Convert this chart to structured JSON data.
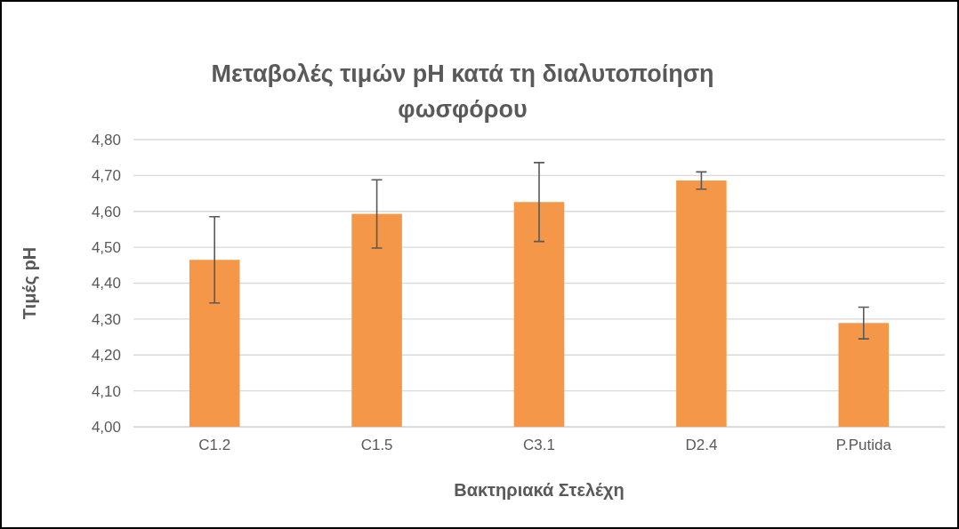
{
  "chart_data": {
    "type": "bar",
    "title": "Μεταβολές τιμών pH κατά τη διαλυτοποίηση φωσφόρου",
    "xlabel": "Βακτηριακά Στελέχη",
    "ylabel": "Τιμές pH",
    "categories": [
      "C1.2",
      "C1.5",
      "C3.1",
      "D2.4",
      "P.Putida"
    ],
    "values": [
      4.465,
      4.593,
      4.626,
      4.686,
      4.289
    ],
    "errors": [
      0.12,
      0.095,
      0.11,
      0.024,
      0.044
    ],
    "color": "#f59748",
    "ylim": [
      4.0,
      4.8
    ],
    "yticks": [
      {
        "value": 4.0,
        "label": "4,00"
      },
      {
        "value": 4.1,
        "label": "4,10"
      },
      {
        "value": 4.2,
        "label": "4,20"
      },
      {
        "value": 4.3,
        "label": "4,30"
      },
      {
        "value": 4.4,
        "label": "4,40"
      },
      {
        "value": 4.5,
        "label": "4,50"
      },
      {
        "value": 4.6,
        "label": "4,60"
      },
      {
        "value": 4.7,
        "label": "4,70"
      },
      {
        "value": 4.8,
        "label": "4,80"
      }
    ],
    "grid": "y"
  }
}
